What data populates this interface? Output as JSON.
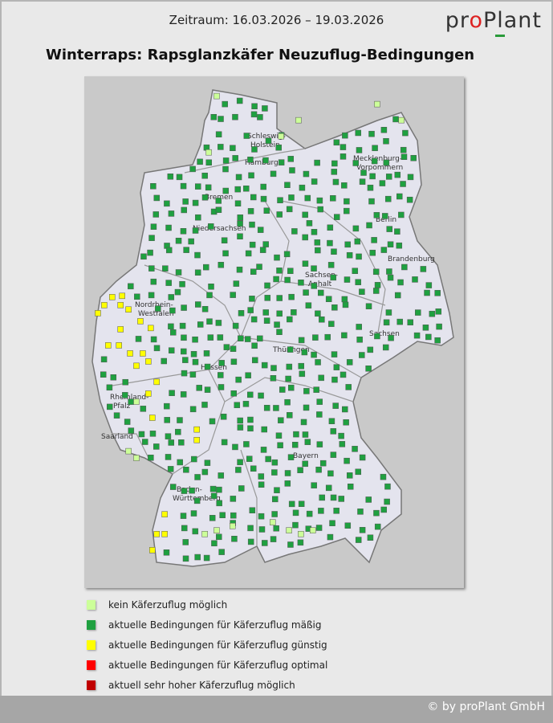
{
  "header": {
    "period": "Zeitraum: 16.03.2026 – 19.03.2026",
    "logo_text": "proPlant",
    "title": "Winterraps: Rapsglanzkäfer Neuzuflug-Bedingungen"
  },
  "map": {
    "states": [
      "Schleswig-Holstein",
      "Hamburg",
      "Mecklenburg-Vorpommern",
      "Bremen",
      "Niedersachsen",
      "Berlin",
      "Brandenburg",
      "Sachsen-Anhalt",
      "Nordrhein-Westfalen",
      "Sachsen",
      "Thüringen",
      "Hessen",
      "Rheinland-Pfalz",
      "Saarland",
      "Bayern",
      "Baden-Württemberg"
    ],
    "stations_yellow": [
      [
        5.98,
        51.48
      ],
      [
        6.14,
        51.61
      ],
      [
        6.34,
        51.74
      ],
      [
        6.59,
        51.76
      ],
      [
        6.55,
        51.61
      ],
      [
        6.75,
        51.54
      ],
      [
        7.05,
        51.35
      ],
      [
        7.31,
        51.24
      ],
      [
        6.55,
        51.22
      ],
      [
        6.24,
        50.96
      ],
      [
        6.51,
        50.96
      ],
      [
        6.79,
        50.83
      ],
      [
        7.11,
        50.83
      ],
      [
        7.25,
        50.7
      ],
      [
        6.95,
        50.63
      ],
      [
        7.46,
        50.37
      ],
      [
        7.25,
        50.18
      ],
      [
        7.35,
        49.79
      ],
      [
        8.47,
        49.6
      ],
      [
        8.47,
        49.43
      ],
      [
        7.66,
        48.23
      ],
      [
        7.46,
        47.91
      ],
      [
        7.66,
        47.91
      ],
      [
        7.35,
        47.65
      ]
    ],
    "stations_lightgreen": [
      [
        8.97,
        54.99
      ],
      [
        10.59,
        54.34
      ],
      [
        11.03,
        54.6
      ],
      [
        13.01,
        54.86
      ],
      [
        13.62,
        54.6
      ],
      [
        6.75,
        49.25
      ],
      [
        6.95,
        49.14
      ],
      [
        8.67,
        47.91
      ],
      [
        8.97,
        47.97
      ],
      [
        9.37,
        48.04
      ],
      [
        10.79,
        47.97
      ],
      [
        11.09,
        47.91
      ],
      [
        11.39,
        47.97
      ],
      [
        10.38,
        48.1
      ],
      [
        6.95,
        50.05
      ],
      [
        8.77,
        54.08
      ]
    ]
  },
  "legend": [
    {
      "label": "kein Käferzuflug möglich",
      "color": "#ccff99"
    },
    {
      "label": "aktuelle Bedingungen für Käferzuflug mäßig",
      "color": "#1fa040"
    },
    {
      "label": "aktuelle Bedingungen für Käferzuflug günstig",
      "color": "#ffff00"
    },
    {
      "label": "aktuelle Bedingungen für Käferzuflug optimal",
      "color": "#ff0000"
    },
    {
      "label": "aktuell sehr hoher Käferzuflug möglich",
      "color": "#c00000"
    }
  ],
  "footer": {
    "copyright": "© by proPlant GmbH"
  }
}
